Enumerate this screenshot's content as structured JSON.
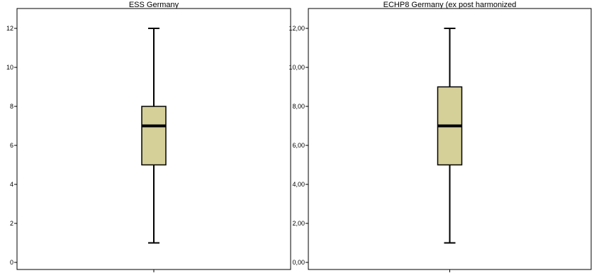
{
  "chart_data": [
    {
      "type": "box",
      "title": "ESS Germany",
      "ylim": [
        0,
        12
      ],
      "yticks": [
        0,
        2,
        4,
        6,
        8,
        10,
        12
      ],
      "ytick_labels": [
        "0",
        "2",
        "4",
        "6",
        "8",
        "10",
        "12"
      ],
      "box": {
        "min": 1,
        "q1": 5,
        "median": 7,
        "q3": 8,
        "max": 12
      },
      "box_color": "#d5cf98"
    },
    {
      "type": "box",
      "title": "ECHP8 Germany (ex post harmonized",
      "ylim": [
        0,
        12
      ],
      "yticks": [
        0,
        2,
        4,
        6,
        8,
        10,
        12
      ],
      "ytick_labels": [
        "0,00",
        "2,00",
        "4,00",
        "6,00",
        "8,00",
        "10,00",
        "12,00"
      ],
      "box": {
        "min": 1,
        "q1": 5,
        "median": 7,
        "q3": 9,
        "max": 12
      },
      "box_color": "#d5cf98"
    }
  ]
}
